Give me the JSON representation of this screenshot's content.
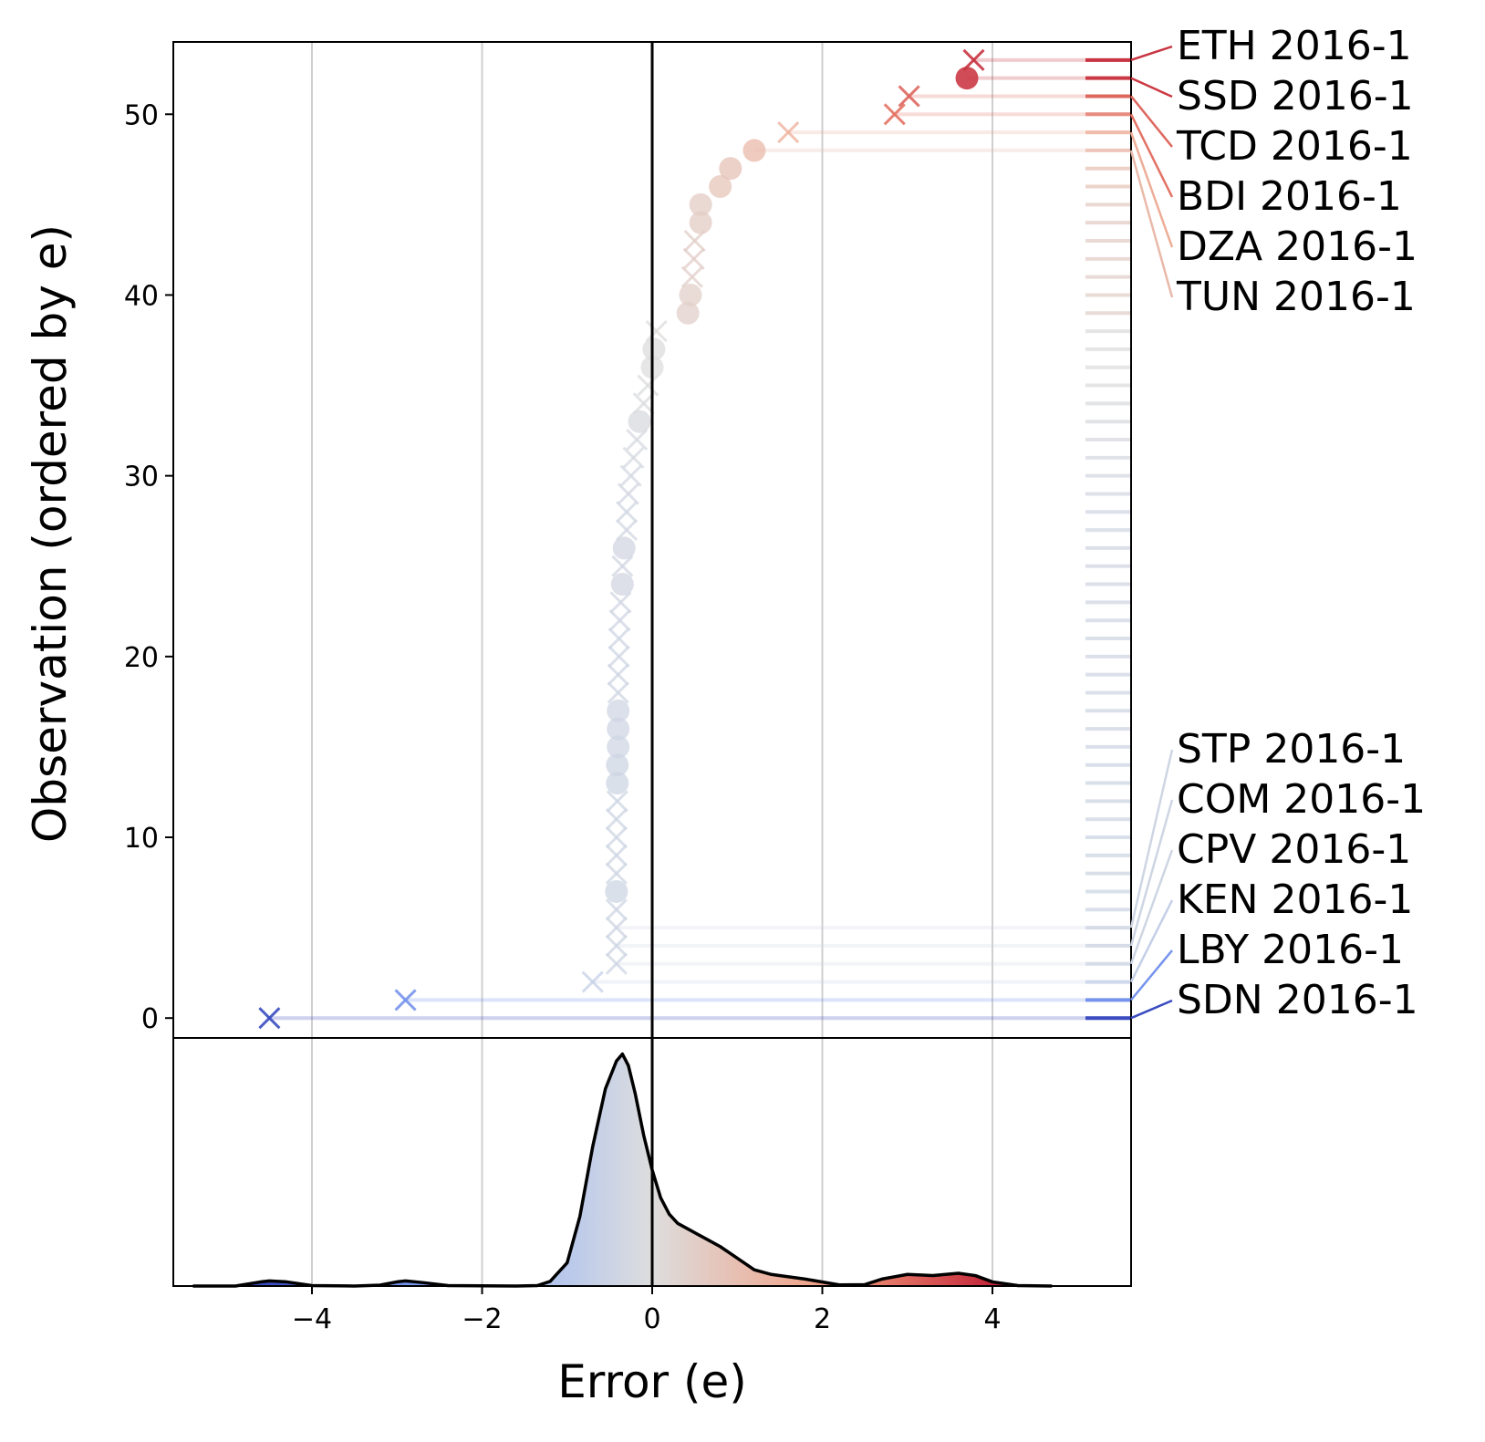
{
  "chart_data": {
    "type": "scatter",
    "xlabel": "Error (e)",
    "ylabel": "Observation (ordered by e)",
    "xlim": [
      -5.63,
      5.63
    ],
    "ylim": [
      -1.1,
      54.0
    ],
    "x_ticks": [
      -4,
      -2,
      0,
      2,
      4
    ],
    "x_tick_labels": [
      "−4",
      "−2",
      "0",
      "2",
      "4"
    ],
    "y_ticks": [
      0,
      10,
      20,
      30,
      40,
      50
    ],
    "y_tick_labels": [
      "0",
      "10",
      "20",
      "30",
      "40",
      "50"
    ],
    "vertical_gridlines": [
      -4,
      -2,
      2,
      4
    ],
    "zero_line": 0,
    "marker_legend": {
      "x": "cross",
      "o": "circle"
    },
    "points": [
      {
        "obs": 0,
        "e": -4.5,
        "marker": "x"
      },
      {
        "obs": 1,
        "e": -2.9,
        "marker": "x"
      },
      {
        "obs": 2,
        "e": -0.7,
        "marker": "x"
      },
      {
        "obs": 3,
        "e": -0.42,
        "marker": "x"
      },
      {
        "obs": 4,
        "e": -0.42,
        "marker": "x"
      },
      {
        "obs": 5,
        "e": -0.42,
        "marker": "x"
      },
      {
        "obs": 6,
        "e": -0.42,
        "marker": "x"
      },
      {
        "obs": 7,
        "e": -0.42,
        "marker": "o"
      },
      {
        "obs": 8,
        "e": -0.42,
        "marker": "x"
      },
      {
        "obs": 9,
        "e": -0.42,
        "marker": "x"
      },
      {
        "obs": 10,
        "e": -0.42,
        "marker": "x"
      },
      {
        "obs": 11,
        "e": -0.42,
        "marker": "x"
      },
      {
        "obs": 12,
        "e": -0.41,
        "marker": "x"
      },
      {
        "obs": 13,
        "e": -0.41,
        "marker": "o"
      },
      {
        "obs": 14,
        "e": -0.41,
        "marker": "o"
      },
      {
        "obs": 15,
        "e": -0.4,
        "marker": "o"
      },
      {
        "obs": 16,
        "e": -0.4,
        "marker": "o"
      },
      {
        "obs": 17,
        "e": -0.4,
        "marker": "o"
      },
      {
        "obs": 18,
        "e": -0.4,
        "marker": "x"
      },
      {
        "obs": 19,
        "e": -0.4,
        "marker": "x"
      },
      {
        "obs": 20,
        "e": -0.39,
        "marker": "x"
      },
      {
        "obs": 21,
        "e": -0.39,
        "marker": "x"
      },
      {
        "obs": 22,
        "e": -0.38,
        "marker": "x"
      },
      {
        "obs": 23,
        "e": -0.37,
        "marker": "x"
      },
      {
        "obs": 24,
        "e": -0.35,
        "marker": "o"
      },
      {
        "obs": 25,
        "e": -0.35,
        "marker": "x"
      },
      {
        "obs": 26,
        "e": -0.33,
        "marker": "o"
      },
      {
        "obs": 27,
        "e": -0.3,
        "marker": "x"
      },
      {
        "obs": 28,
        "e": -0.3,
        "marker": "x"
      },
      {
        "obs": 29,
        "e": -0.28,
        "marker": "x"
      },
      {
        "obs": 30,
        "e": -0.25,
        "marker": "x"
      },
      {
        "obs": 31,
        "e": -0.22,
        "marker": "x"
      },
      {
        "obs": 32,
        "e": -0.18,
        "marker": "x"
      },
      {
        "obs": 33,
        "e": -0.15,
        "marker": "o"
      },
      {
        "obs": 34,
        "e": -0.1,
        "marker": "x"
      },
      {
        "obs": 35,
        "e": -0.05,
        "marker": "x"
      },
      {
        "obs": 36,
        "e": 0.0,
        "marker": "o"
      },
      {
        "obs": 37,
        "e": 0.02,
        "marker": "o"
      },
      {
        "obs": 38,
        "e": 0.05,
        "marker": "x"
      },
      {
        "obs": 39,
        "e": 0.42,
        "marker": "o"
      },
      {
        "obs": 40,
        "e": 0.45,
        "marker": "o"
      },
      {
        "obs": 41,
        "e": 0.47,
        "marker": "x"
      },
      {
        "obs": 42,
        "e": 0.49,
        "marker": "x"
      },
      {
        "obs": 43,
        "e": 0.5,
        "marker": "x"
      },
      {
        "obs": 44,
        "e": 0.57,
        "marker": "o"
      },
      {
        "obs": 45,
        "e": 0.57,
        "marker": "o"
      },
      {
        "obs": 46,
        "e": 0.8,
        "marker": "o"
      },
      {
        "obs": 47,
        "e": 0.92,
        "marker": "o"
      },
      {
        "obs": 48,
        "e": 1.2,
        "marker": "o"
      },
      {
        "obs": 49,
        "e": 1.6,
        "marker": "x"
      },
      {
        "obs": 50,
        "e": 2.85,
        "marker": "x"
      },
      {
        "obs": 51,
        "e": 3.02,
        "marker": "x"
      },
      {
        "obs": 52,
        "e": 3.7,
        "marker": "o"
      },
      {
        "obs": 53,
        "e": 3.78,
        "marker": "x"
      }
    ],
    "top_labels": [
      {
        "label": "ETH 2016-1",
        "obs": 53
      },
      {
        "label": "SSD 2016-1",
        "obs": 52
      },
      {
        "label": "TCD 2016-1",
        "obs": 51
      },
      {
        "label": "BDI 2016-1",
        "obs": 50
      },
      {
        "label": "DZA 2016-1",
        "obs": 49
      },
      {
        "label": "TUN 2016-1",
        "obs": 48
      }
    ],
    "bottom_labels": [
      {
        "label": "STP 2016-1",
        "obs": 5
      },
      {
        "label": "COM 2016-1",
        "obs": 4
      },
      {
        "label": "CPV 2016-1",
        "obs": 3
      },
      {
        "label": "KEN 2016-1",
        "obs": 2
      },
      {
        "label": "LBY 2016-1",
        "obs": 1
      },
      {
        "label": "SDN 2016-1",
        "obs": 0
      }
    ],
    "density": {
      "x": [
        -5.4,
        -4.9,
        -4.6,
        -4.5,
        -4.3,
        -4.0,
        -3.5,
        -3.2,
        -3.0,
        -2.9,
        -2.7,
        -2.4,
        -1.6,
        -1.35,
        -1.2,
        -1.0,
        -0.85,
        -0.7,
        -0.55,
        -0.42,
        -0.35,
        -0.28,
        -0.2,
        -0.1,
        0.0,
        0.1,
        0.2,
        0.3,
        0.45,
        0.6,
        0.8,
        1.0,
        1.2,
        1.4,
        1.8,
        2.2,
        2.5,
        2.7,
        3.0,
        3.3,
        3.6,
        3.8,
        4.0,
        4.3,
        4.7
      ],
      "y": [
        0.0,
        0.0,
        0.018,
        0.022,
        0.018,
        0.002,
        0.0,
        0.004,
        0.018,
        0.022,
        0.015,
        0.002,
        0.0,
        0.002,
        0.02,
        0.1,
        0.3,
        0.6,
        0.85,
        0.97,
        1.0,
        0.95,
        0.83,
        0.65,
        0.5,
        0.38,
        0.31,
        0.27,
        0.24,
        0.21,
        0.17,
        0.12,
        0.07,
        0.05,
        0.03,
        0.005,
        0.006,
        0.03,
        0.05,
        0.045,
        0.055,
        0.045,
        0.018,
        0.002,
        0.0
      ],
      "ylim": [
        0,
        1.03
      ]
    }
  }
}
